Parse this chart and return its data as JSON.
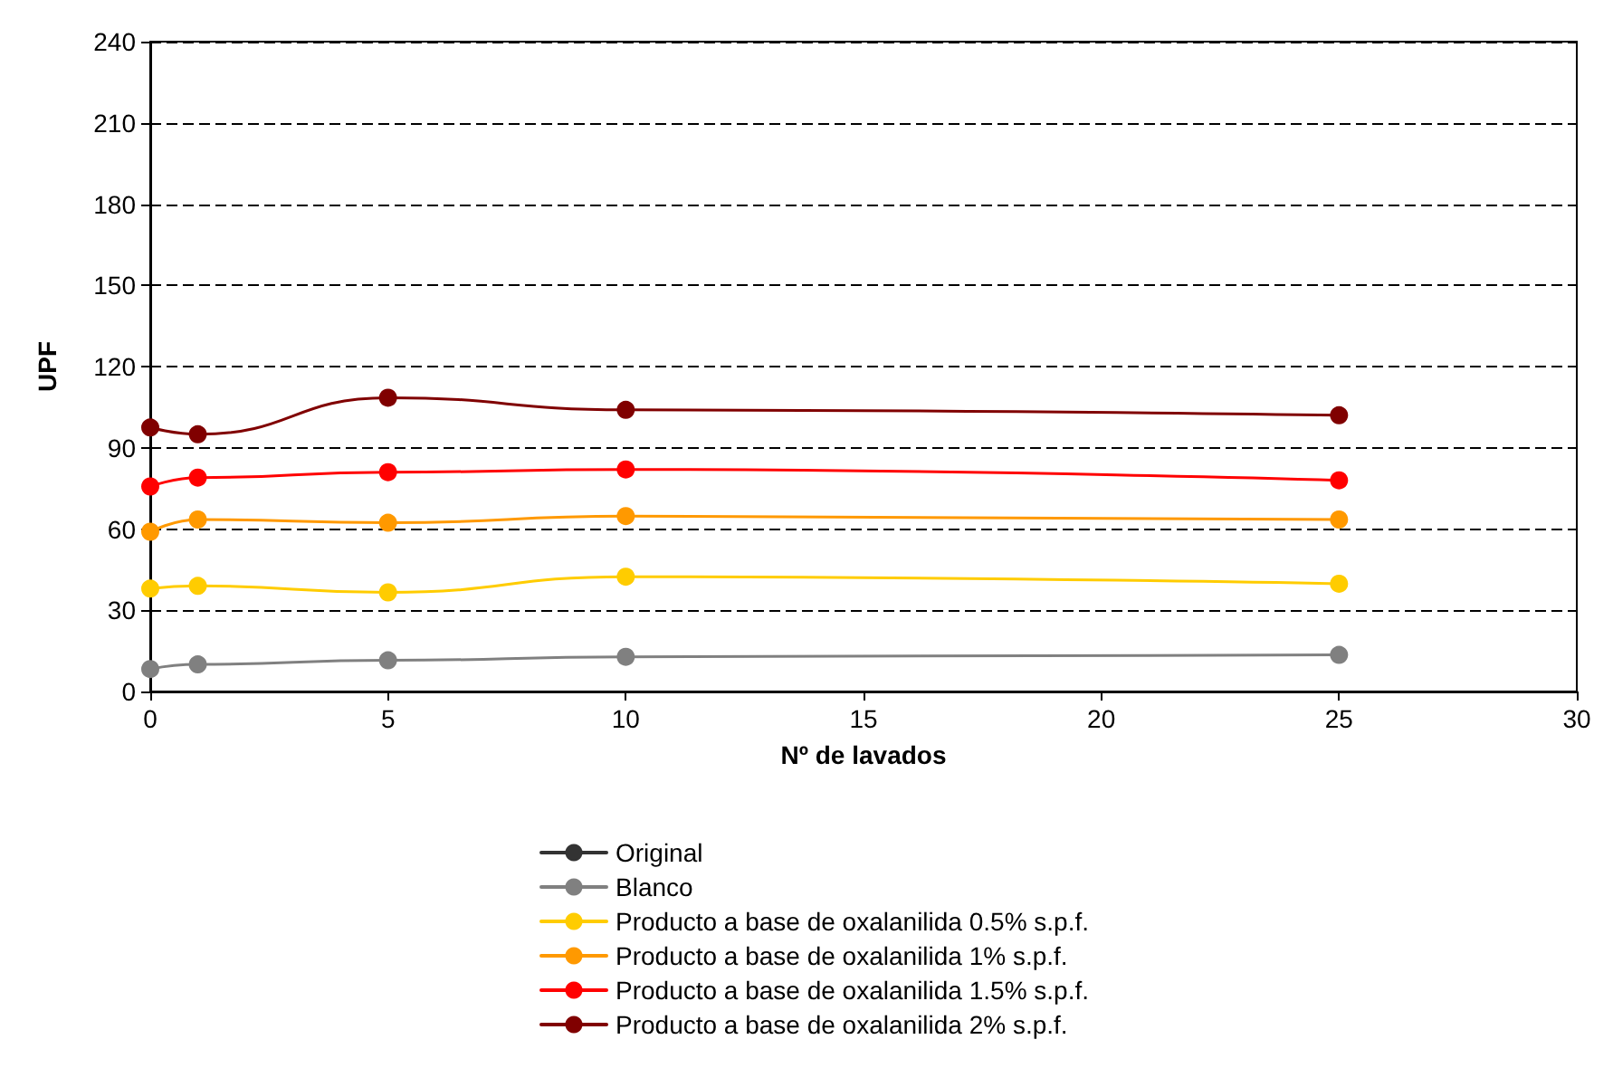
{
  "chart_data": {
    "type": "line",
    "xlabel": "Nº de lavados",
    "ylabel": "UPF",
    "x": [
      0,
      1,
      5,
      10,
      25
    ],
    "xlim": [
      0,
      30
    ],
    "xticks": [
      0,
      5,
      10,
      15,
      20,
      25,
      30
    ],
    "ylim": [
      0,
      240
    ],
    "yticks": [
      0,
      30,
      60,
      90,
      120,
      150,
      180,
      210,
      240
    ],
    "grid": "y",
    "legend": "bottom",
    "marker": "circle",
    "line_style": "solid",
    "series": [
      {
        "name": "Original",
        "color": "#333333",
        "values": [
          null,
          null,
          null,
          null,
          null
        ]
      },
      {
        "name": "Blanco",
        "color": "#808080",
        "values": [
          8.3,
          10,
          11.5,
          12.8,
          13.5
        ]
      },
      {
        "name": "Producto a base de oxalanilida 0.5% s.p.f.",
        "color": "#ffcc00",
        "values": [
          38,
          39,
          36.6,
          42.4,
          39.8
        ]
      },
      {
        "name": "Producto a base de oxalanilida 1% s.p.f.",
        "color": "#ff9900",
        "values": [
          59,
          63.5,
          62.3,
          64.8,
          63.5
        ]
      },
      {
        "name": "Producto a base de oxalanilida 1.5% s.p.f.",
        "color": "#ff0000",
        "values": [
          75.7,
          79,
          81,
          82,
          78
        ]
      },
      {
        "name": "Producto a base de oxalanilida 2% s.p.f.",
        "color": "#800000",
        "values": [
          97.5,
          95,
          108.5,
          104,
          102
        ]
      }
    ]
  }
}
